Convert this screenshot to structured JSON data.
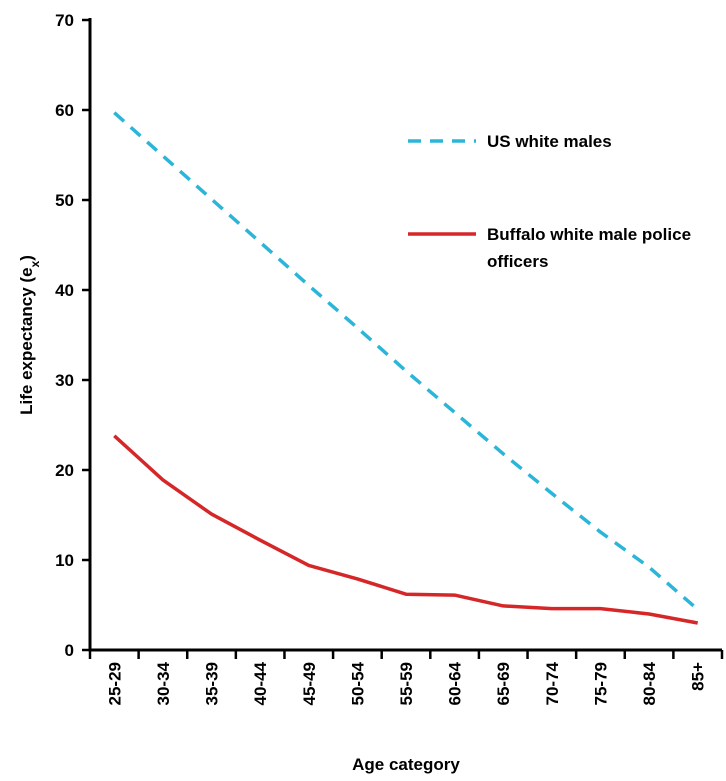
{
  "chart_data": {
    "type": "line",
    "categories": [
      "25-29",
      "30-34",
      "35-39",
      "40-44",
      "45-49",
      "50-54",
      "55-59",
      "60-64",
      "65-69",
      "70-74",
      "75-79",
      "80-84",
      "85+"
    ],
    "series": [
      {
        "name": "US white males",
        "values": [
          59.7,
          54.9,
          50.1,
          45.3,
          40.5,
          35.8,
          31.0,
          26.4,
          21.8,
          17.4,
          13.1,
          9.2,
          4.5
        ],
        "color": "#2bb5d8",
        "dash": "dashed"
      },
      {
        "name": "Buffalo white male police officers",
        "name_lines": [
          "Buffalo white male police",
          "officers"
        ],
        "values": [
          23.8,
          18.9,
          15.1,
          12.2,
          9.4,
          7.9,
          6.2,
          6.1,
          4.9,
          4.6,
          4.6,
          4.0,
          3.0
        ],
        "color": "#d62728",
        "dash": "solid"
      }
    ],
    "title": "",
    "xlabel": "Age category",
    "ylabel_main": "Life expectancy (e",
    "ylabel_sub": "x",
    "ylabel_close": ")",
    "ylim": [
      0,
      70
    ],
    "yticks": [
      0,
      10,
      20,
      30,
      40,
      50,
      60,
      70
    ],
    "grid": false,
    "legend_position": "right"
  }
}
